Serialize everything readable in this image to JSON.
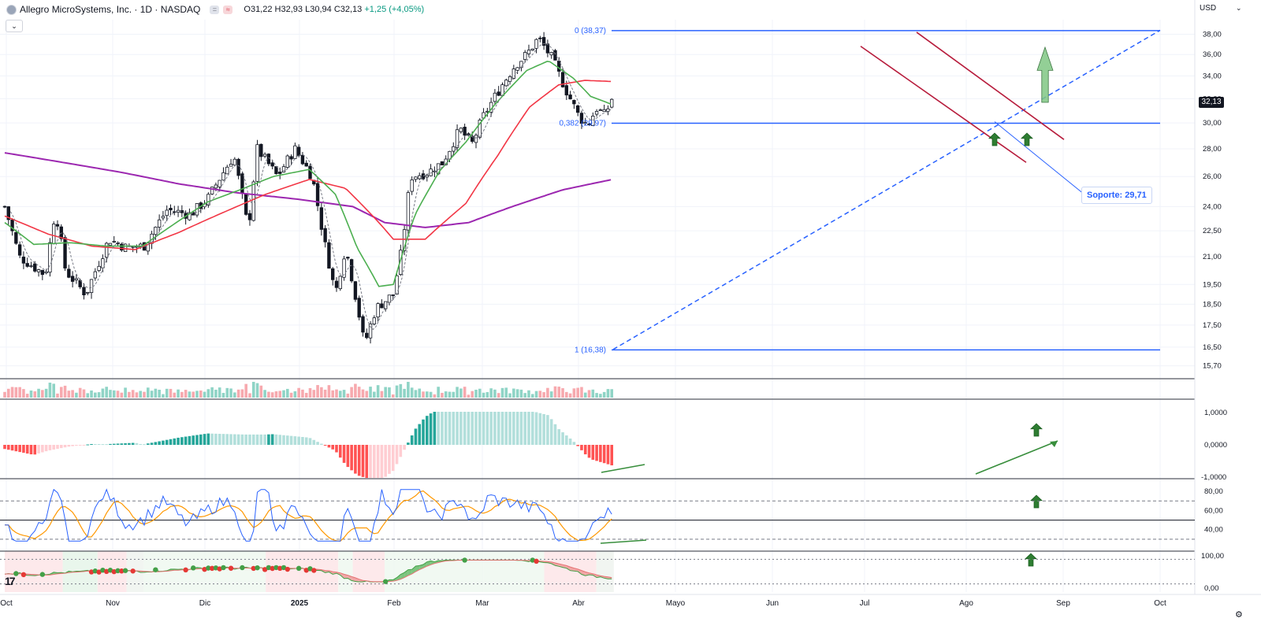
{
  "header": {
    "title": "Allegro MicroSystems, Inc. · 1D · NASDAQ",
    "badge_a": "=",
    "badge_b": "≈",
    "open": "O31,22",
    "high": "H32,93",
    "low": "L30,94",
    "close": "C32,13",
    "change": "+1,25 (+4,05%)",
    "toggle_glyph": "⌄"
  },
  "currency": "USD",
  "currency_caret": "⌄",
  "last_price": "32,13",
  "annotations": {
    "support_label": "Soporte: 29,71",
    "fib_top": "0 (38,37)",
    "fib_mid": "0,382 (29,97)",
    "fib_bottom": "1 (16,38)"
  },
  "icons": {
    "logo": "tradingview-logo-icon",
    "logo_text": "17",
    "settings": "gear-icon",
    "settings_glyph": "⚙"
  },
  "colors": {
    "up": "#089981",
    "down": "#f23645",
    "ema_fast": "#4caf50",
    "ema_mid": "#f23645",
    "ema_slow": "#9c27b0",
    "fib": "#2962ff",
    "channel": "#b71c3c"
  },
  "chart_data": {
    "type": "candlestick",
    "symbol": "Allegro MicroSystems, Inc.",
    "interval": "1D",
    "exchange": "NASDAQ",
    "x_labels": [
      "Oct",
      "Nov",
      "Dic",
      "2025",
      "Feb",
      "Mar",
      "Abr",
      "Mayo",
      "Jun",
      "Jul",
      "Ago",
      "Sep",
      "Oct"
    ],
    "y_ticks": [
      "38,00",
      "36,00",
      "34,00",
      "32,00",
      "30,00",
      "28,00",
      "26,00",
      "24,00",
      "22,50",
      "21,00",
      "19,50",
      "18,50",
      "17,50",
      "16,50",
      "15,70"
    ],
    "ylim": [
      15.2,
      39.5
    ],
    "anchors": [
      {
        "d": 0,
        "p": 24.0
      },
      {
        "d": 10,
        "p": 21.0
      },
      {
        "d": 28,
        "p": 20.0
      },
      {
        "d": 35,
        "p": 23.8
      },
      {
        "d": 42,
        "p": 20.2
      },
      {
        "d": 56,
        "p": 19.0
      },
      {
        "d": 64,
        "p": 20.5
      },
      {
        "d": 72,
        "p": 22.0
      },
      {
        "d": 84,
        "p": 21.5
      },
      {
        "d": 96,
        "p": 21.6
      },
      {
        "d": 112,
        "p": 23.8
      },
      {
        "d": 128,
        "p": 23.5
      },
      {
        "d": 140,
        "p": 24.5
      },
      {
        "d": 158,
        "p": 27.5
      },
      {
        "d": 168,
        "p": 22.5
      },
      {
        "d": 174,
        "p": 28.0
      },
      {
        "d": 188,
        "p": 26.0
      },
      {
        "d": 200,
        "p": 28.0
      },
      {
        "d": 212,
        "p": 26.0
      },
      {
        "d": 220,
        "p": 22.0
      },
      {
        "d": 228,
        "p": 19.0
      },
      {
        "d": 235,
        "p": 21.5
      },
      {
        "d": 243,
        "p": 18.5
      },
      {
        "d": 248,
        "p": 16.6
      },
      {
        "d": 256,
        "p": 18.3
      },
      {
        "d": 268,
        "p": 19.0
      },
      {
        "d": 274,
        "p": 21.5
      },
      {
        "d": 280,
        "p": 26.0
      },
      {
        "d": 292,
        "p": 26.3
      },
      {
        "d": 302,
        "p": 27.0
      },
      {
        "d": 314,
        "p": 29.5
      },
      {
        "d": 322,
        "p": 28.3
      },
      {
        "d": 330,
        "p": 30.5
      },
      {
        "d": 342,
        "p": 33.0
      },
      {
        "d": 352,
        "p": 35.0
      },
      {
        "d": 360,
        "p": 36.0
      },
      {
        "d": 368,
        "p": 37.6
      },
      {
        "d": 378,
        "p": 35.5
      },
      {
        "d": 382,
        "p": 34.2
      },
      {
        "d": 388,
        "p": 32.5
      },
      {
        "d": 396,
        "p": 30.5
      },
      {
        "d": 402,
        "p": 29.8
      },
      {
        "d": 408,
        "p": 31.2
      },
      {
        "d": 414,
        "p": 30.6
      },
      {
        "d": 419,
        "p": 32.13
      }
    ],
    "ema_fast": [
      {
        "d": 0,
        "p": 23.0
      },
      {
        "d": 20,
        "p": 21.7
      },
      {
        "d": 45,
        "p": 21.8
      },
      {
        "d": 70,
        "p": 21.6
      },
      {
        "d": 95,
        "p": 21.6
      },
      {
        "d": 115,
        "p": 22.8
      },
      {
        "d": 140,
        "p": 24.3
      },
      {
        "d": 165,
        "p": 25.2
      },
      {
        "d": 185,
        "p": 26.0
      },
      {
        "d": 210,
        "p": 26.5
      },
      {
        "d": 228,
        "p": 24.8
      },
      {
        "d": 243,
        "p": 21.5
      },
      {
        "d": 258,
        "p": 19.4
      },
      {
        "d": 268,
        "p": 19.5
      },
      {
        "d": 283,
        "p": 23.5
      },
      {
        "d": 300,
        "p": 26.4
      },
      {
        "d": 318,
        "p": 28.5
      },
      {
        "d": 338,
        "p": 31.5
      },
      {
        "d": 360,
        "p": 34.5
      },
      {
        "d": 375,
        "p": 35.4
      },
      {
        "d": 392,
        "p": 33.8
      },
      {
        "d": 404,
        "p": 32.2
      },
      {
        "d": 419,
        "p": 31.5
      }
    ],
    "ema_mid": [
      {
        "d": 0,
        "p": 23.4
      },
      {
        "d": 30,
        "p": 22.3
      },
      {
        "d": 60,
        "p": 21.6
      },
      {
        "d": 90,
        "p": 21.4
      },
      {
        "d": 120,
        "p": 22.4
      },
      {
        "d": 150,
        "p": 23.6
      },
      {
        "d": 180,
        "p": 24.8
      },
      {
        "d": 210,
        "p": 25.8
      },
      {
        "d": 235,
        "p": 25.2
      },
      {
        "d": 258,
        "p": 23.0
      },
      {
        "d": 268,
        "p": 22.0
      },
      {
        "d": 290,
        "p": 22.0
      },
      {
        "d": 318,
        "p": 24.2
      },
      {
        "d": 340,
        "p": 27.5
      },
      {
        "d": 362,
        "p": 31.3
      },
      {
        "d": 382,
        "p": 33.2
      },
      {
        "d": 400,
        "p": 33.6
      },
      {
        "d": 419,
        "p": 33.5
      }
    ],
    "ema_slow": [
      {
        "d": 0,
        "p": 27.7
      },
      {
        "d": 40,
        "p": 27.0
      },
      {
        "d": 80,
        "p": 26.3
      },
      {
        "d": 120,
        "p": 25.5
      },
      {
        "d": 160,
        "p": 24.9
      },
      {
        "d": 200,
        "p": 24.5
      },
      {
        "d": 240,
        "p": 24.0
      },
      {
        "d": 262,
        "p": 23.0
      },
      {
        "d": 290,
        "p": 22.7
      },
      {
        "d": 320,
        "p": 23.0
      },
      {
        "d": 350,
        "p": 24.0
      },
      {
        "d": 385,
        "p": 25.1
      },
      {
        "d": 419,
        "p": 25.8
      }
    ],
    "fibonacci": [
      {
        "level": "0",
        "price": 38.37
      },
      {
        "level": "0,382",
        "price": 29.97
      },
      {
        "level": "1",
        "price": 16.38
      }
    ],
    "support": 29.71,
    "last_price": 32.13,
    "panels": {
      "macd": {
        "ticks": [
          "1,0000",
          "0,0000",
          "-1,0000"
        ]
      },
      "rsi": {
        "ticks": [
          "80,00",
          "60,00",
          "40,00"
        ],
        "levels": [
          70,
          50,
          30
        ]
      },
      "oscillator": {
        "ticks": [
          "100,00",
          "0,00"
        ]
      }
    }
  }
}
